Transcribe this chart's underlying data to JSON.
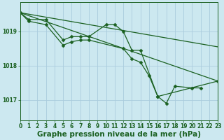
{
  "bg_color": "#cce8f0",
  "grid_color": "#aaccdd",
  "line_color": "#1a6020",
  "marker_color": "#1a6020",
  "title": "Graphe pression niveau de la mer (hPa)",
  "xlim": [
    0,
    23
  ],
  "ylim": [
    1016.4,
    1019.85
  ],
  "yticks": [
    1017,
    1018,
    1019
  ],
  "xticks": [
    0,
    1,
    2,
    3,
    4,
    5,
    6,
    7,
    8,
    9,
    10,
    11,
    12,
    13,
    14,
    15,
    16,
    17,
    18,
    19,
    20,
    21,
    22,
    23
  ],
  "series": [
    {
      "x": [
        0,
        1,
        3,
        5,
        6,
        7,
        8,
        10,
        11,
        12,
        13,
        14,
        16,
        17,
        18,
        20,
        21
      ],
      "y": [
        1019.55,
        1019.35,
        1019.35,
        1018.75,
        1018.85,
        1018.85,
        1018.85,
        1019.2,
        1019.2,
        1019.0,
        1018.45,
        1018.45,
        1017.1,
        1016.9,
        1017.4,
        1017.35,
        1017.35
      ],
      "has_markers": true
    },
    {
      "x": [
        0,
        1,
        3,
        5,
        6,
        7,
        8,
        12,
        13,
        14,
        15,
        16,
        23
      ],
      "y": [
        1019.55,
        1019.3,
        1019.2,
        1018.6,
        1018.7,
        1018.75,
        1018.75,
        1018.5,
        1018.2,
        1018.1,
        1017.7,
        1017.1,
        1017.55
      ],
      "has_markers": true
    },
    {
      "x": [
        0,
        23
      ],
      "y": [
        1019.55,
        1018.55
      ],
      "has_markers": false
    },
    {
      "x": [
        0,
        23
      ],
      "y": [
        1019.55,
        1017.55
      ],
      "has_markers": false
    }
  ],
  "marker": "D",
  "marker_size": 2.5,
  "linewidth": 0.9,
  "title_fontsize": 7.5,
  "tick_fontsize": 5.5
}
